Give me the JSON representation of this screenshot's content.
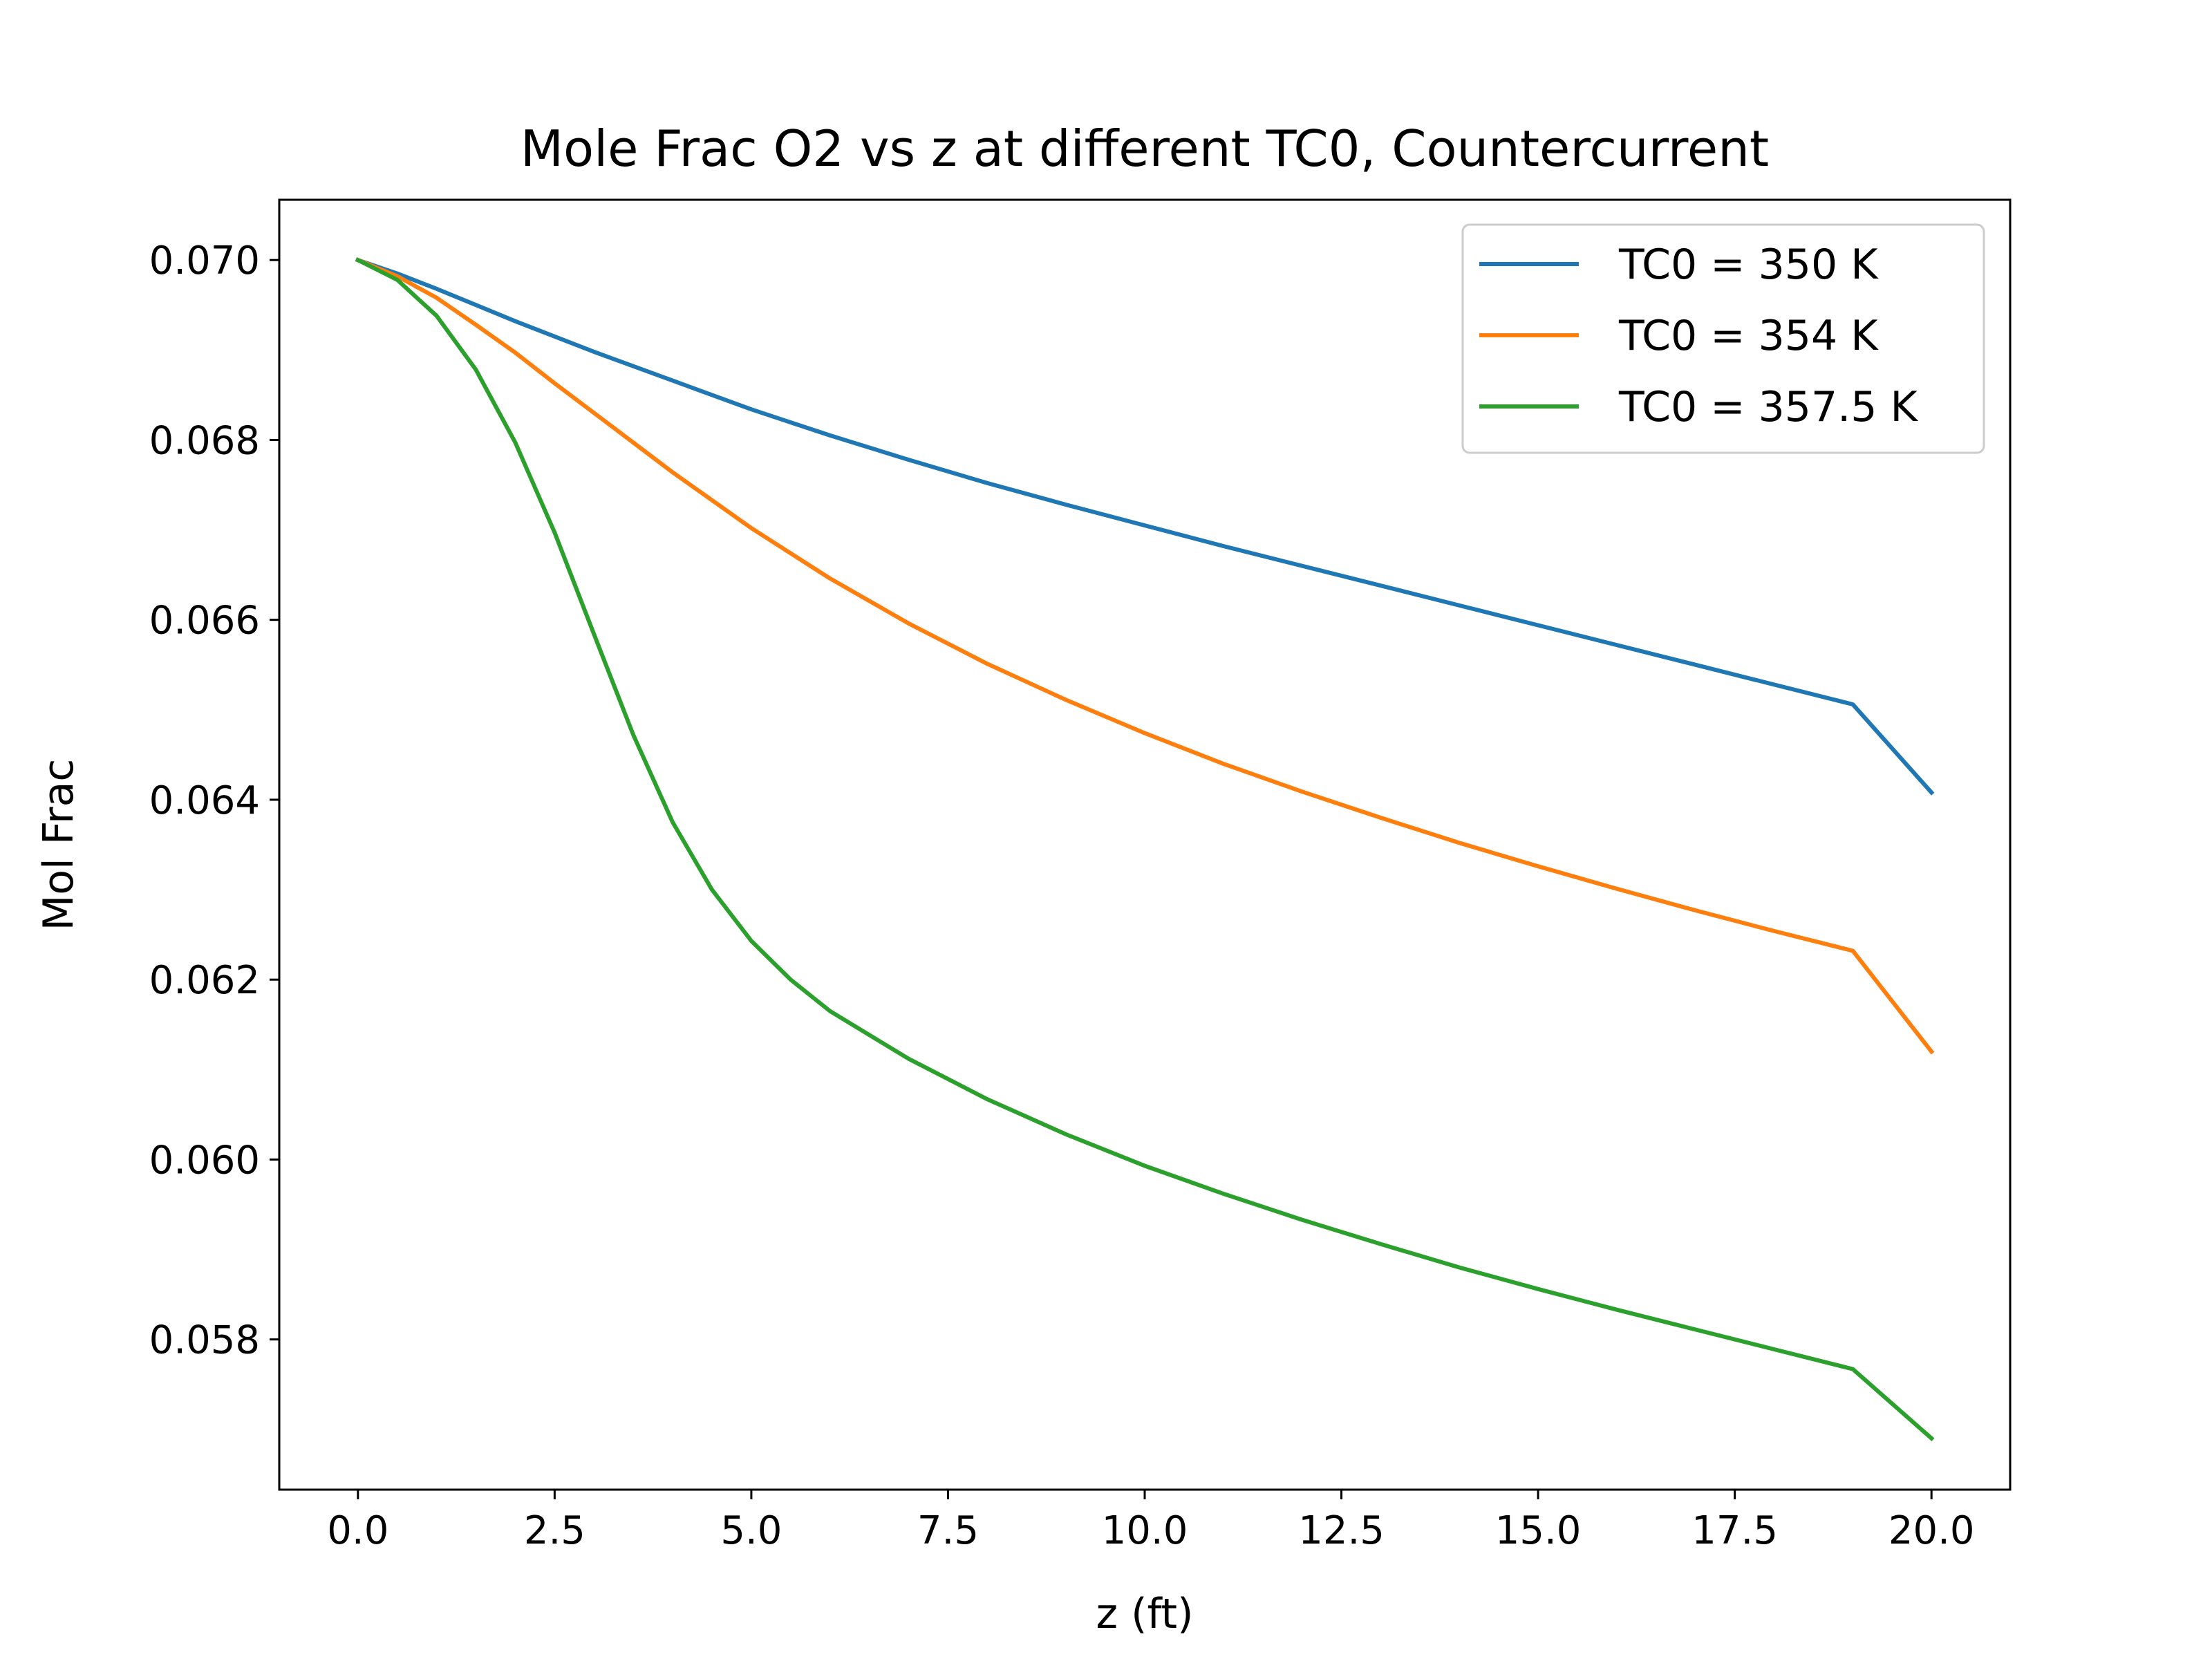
{
  "chart_data": {
    "type": "line",
    "title": "Mole Frac O2 vs z at different TC0, Countercurrent",
    "xlabel": "z (ft)",
    "ylabel": "Mol Frac",
    "xlim": [
      -1.0,
      21.0
    ],
    "ylim": [
      0.05633,
      0.07067
    ],
    "xticks": [
      0.0,
      2.5,
      5.0,
      7.5,
      10.0,
      12.5,
      15.0,
      17.5,
      20.0
    ],
    "xtick_labels": [
      "0.0",
      "2.5",
      "5.0",
      "7.5",
      "10.0",
      "12.5",
      "15.0",
      "17.5",
      "20.0"
    ],
    "yticks": [
      0.058,
      0.06,
      0.062,
      0.064,
      0.066,
      0.068,
      0.07
    ],
    "ytick_labels": [
      "0.058",
      "0.060",
      "0.062",
      "0.064",
      "0.066",
      "0.068",
      "0.070"
    ],
    "grid": false,
    "legend_position": "top-right",
    "series": [
      {
        "name": "TC0 = 350 K",
        "color": "#1f77b4",
        "x": [
          0,
          0.5,
          1,
          1.5,
          2,
          2.5,
          3,
          4,
          5,
          6,
          7,
          8,
          9,
          10,
          11,
          12,
          13,
          14,
          15,
          16,
          17,
          18,
          19,
          20
        ],
        "y": [
          0.07,
          0.06985,
          0.06968,
          0.0695,
          0.06932,
          0.06915,
          0.06898,
          0.06866,
          0.06834,
          0.06805,
          0.06778,
          0.06752,
          0.06728,
          0.06705,
          0.06682,
          0.0666,
          0.06638,
          0.06616,
          0.06594,
          0.06572,
          0.0655,
          0.06528,
          0.06506,
          0.06408
        ]
      },
      {
        "name": "TC0 = 354 K",
        "color": "#ff7f0e",
        "x": [
          0,
          0.5,
          1,
          1.5,
          2,
          2.5,
          3,
          3.5,
          4,
          5,
          6,
          7,
          8,
          9,
          10,
          11,
          12,
          13,
          14,
          15,
          16,
          17,
          18,
          19,
          20
        ],
        "y": [
          0.07,
          0.06982,
          0.06958,
          0.06928,
          0.06897,
          0.06863,
          0.0683,
          0.06797,
          0.06764,
          0.06702,
          0.06646,
          0.06596,
          0.06551,
          0.06511,
          0.06474,
          0.0644,
          0.06409,
          0.0638,
          0.06352,
          0.06326,
          0.06301,
          0.06277,
          0.06254,
          0.06232,
          0.0612
        ]
      },
      {
        "name": "TC0 = 357.5 K",
        "color": "#2ca02c",
        "x": [
          0,
          0.5,
          1,
          1.5,
          2,
          2.5,
          3,
          3.5,
          4,
          4.5,
          5,
          5.5,
          6,
          7,
          8,
          9,
          10,
          11,
          12,
          13,
          14,
          15,
          16,
          17,
          18,
          19,
          20
        ],
        "y": [
          0.07,
          0.06978,
          0.06938,
          0.06878,
          0.06797,
          0.06697,
          0.06584,
          0.06472,
          0.06375,
          0.063,
          0.06243,
          0.062,
          0.06165,
          0.06112,
          0.06067,
          0.06028,
          0.05993,
          0.05962,
          0.05933,
          0.05906,
          0.0588,
          0.05856,
          0.05833,
          0.05811,
          0.05789,
          0.05767,
          0.0569
        ]
      }
    ]
  }
}
